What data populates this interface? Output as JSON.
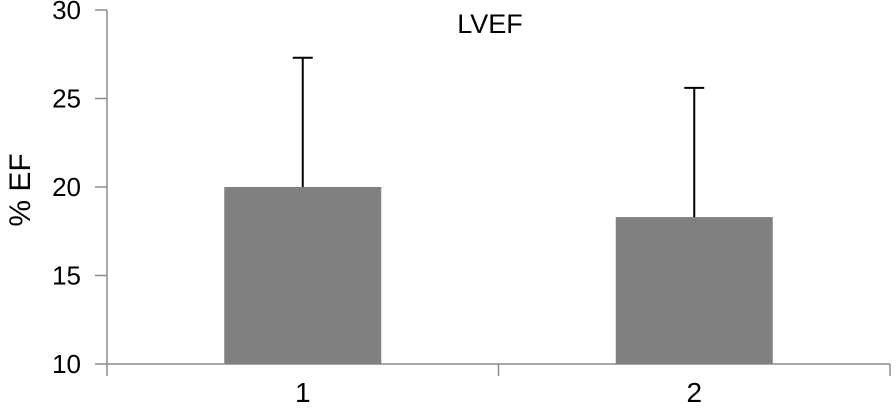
{
  "chart_data": {
    "type": "bar",
    "title": "LVEF",
    "xlabel": "",
    "ylabel": "% EF",
    "categories": [
      "1",
      "2"
    ],
    "values": [
      20.0,
      18.3
    ],
    "error_upper": [
      7.3,
      7.3
    ],
    "ylim": [
      10,
      30
    ],
    "yticks": [
      10,
      15,
      20,
      25,
      30
    ],
    "grid": false,
    "legend": "none",
    "colors": {
      "bar": "#808080",
      "axis": "#8c8c8c",
      "error_bar": "#000000"
    }
  }
}
